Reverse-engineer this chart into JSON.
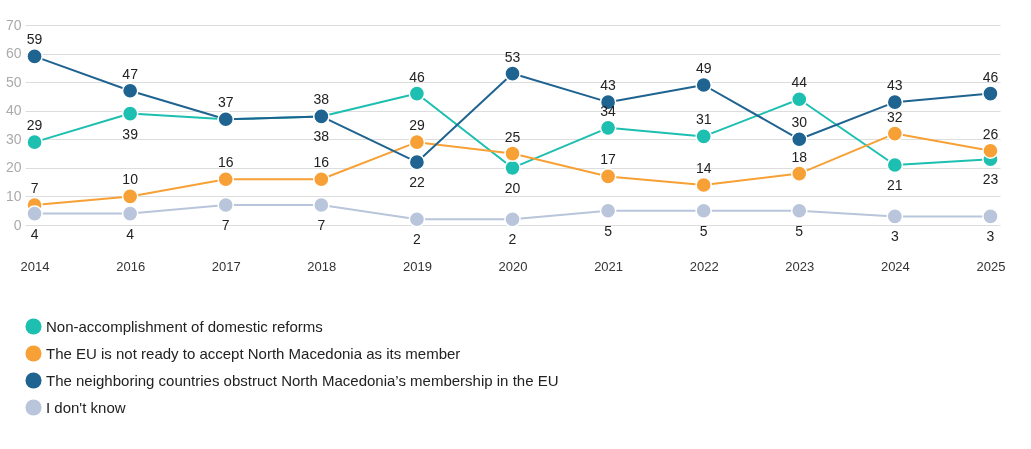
{
  "chart_data": {
    "type": "line",
    "categories": [
      "2014",
      "2016",
      "2017",
      "2018",
      "2019",
      "2020",
      "2021",
      "2022",
      "2023",
      "2024",
      "2025"
    ],
    "series": [
      {
        "name": "Non-accomplishment of domestic reforms",
        "color": "#1dbfb0",
        "values": [
          29,
          39,
          37,
          38,
          46,
          20,
          34,
          31,
          44,
          21,
          23
        ],
        "value_labels": [
          "29",
          "39",
          null,
          "38",
          "46",
          "20",
          "34",
          "31",
          "44",
          "21",
          "23"
        ]
      },
      {
        "name": "The EU is not ready to accept North Macedonia as its member",
        "color": "#f7a035",
        "values": [
          7,
          10,
          16,
          16,
          29,
          25,
          17,
          14,
          18,
          32,
          26
        ],
        "value_labels": [
          "7",
          "10",
          "16",
          "16",
          "29",
          "25",
          "17",
          "14",
          "18",
          "32",
          "26"
        ]
      },
      {
        "name": "The neighboring countries obstruct North Macedonia’s membership in the EU",
        "color": "#1f6391",
        "values": [
          59,
          47,
          37,
          38,
          22,
          53,
          43,
          49,
          30,
          43,
          46
        ],
        "value_labels": [
          "59",
          "47",
          "37",
          "38",
          "22",
          "53",
          "43",
          "49",
          "30",
          "43",
          "46"
        ]
      },
      {
        "name": "I don't know",
        "color": "#b9c5da",
        "values": [
          4,
          4,
          7,
          7,
          2,
          2,
          5,
          5,
          5,
          3,
          3
        ],
        "value_labels": [
          "4",
          "4",
          "7",
          "7",
          "2",
          "2",
          "5",
          "5",
          "5",
          "3",
          "3"
        ]
      }
    ],
    "ylim": [
      0,
      70
    ],
    "yticks": [
      0,
      10,
      20,
      30,
      40,
      50,
      60,
      70
    ],
    "grid": "y",
    "legend": "bottom left",
    "marker": "circle",
    "line_style": "solid"
  }
}
